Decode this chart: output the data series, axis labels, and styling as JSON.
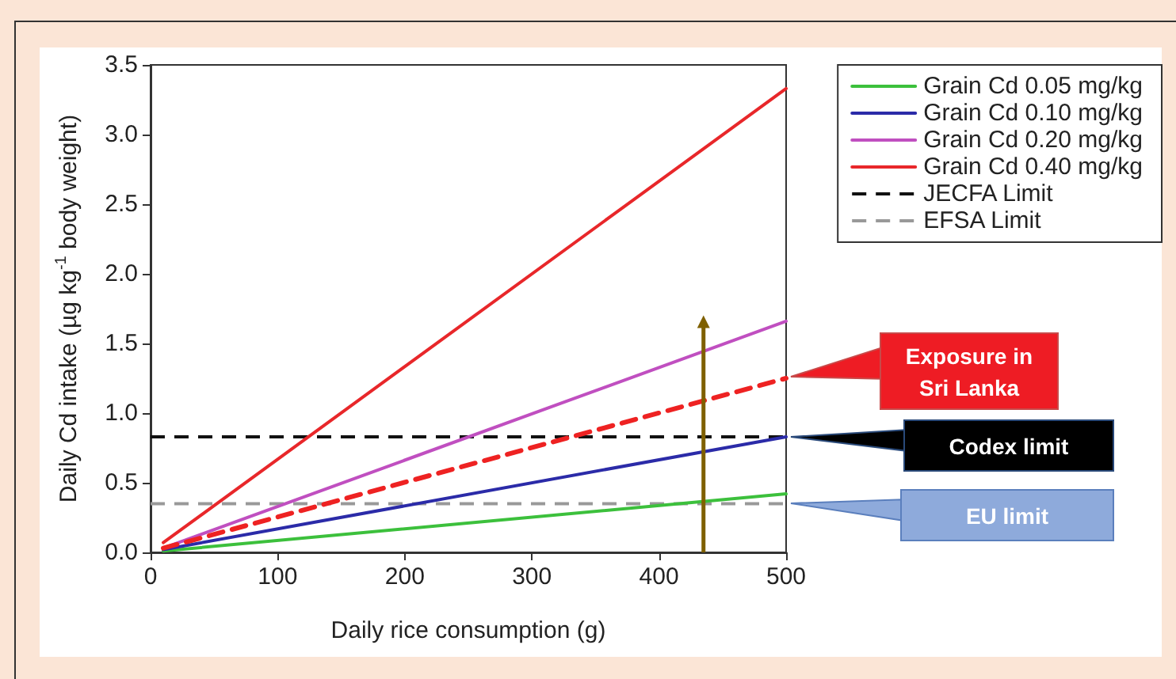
{
  "chart_data": {
    "type": "line",
    "xlabel": "Daily rice consumption (g)",
    "ylabel": "Daily Cd intake (µg kg$^{-1}$ body weight)",
    "x": [
      10,
      500
    ],
    "series": [
      {
        "name": "Grain Cd 0.05 mg/kg",
        "color": "#3cc03c",
        "values": [
          0.01,
          0.42
        ]
      },
      {
        "name": "Grain Cd 0.10 mg/kg",
        "color": "#2b2ba8",
        "values": [
          0.02,
          0.83
        ]
      },
      {
        "name": "Grain Cd 0.20 mg/kg",
        "color": "#c04fc0",
        "values": [
          0.03,
          1.66
        ]
      },
      {
        "name": "Grain Cd 0.40 mg/kg",
        "color": "#e8272a",
        "values": [
          0.07,
          3.33
        ]
      },
      {
        "color": "#ee2222",
        "values": [
          0.03,
          1.25
        ],
        "line_style": "dashed"
      }
    ],
    "ref_lines": [
      {
        "axis": "y",
        "value": 0.83,
        "label": "JECFA Limit",
        "color": "#111111",
        "line_style": "dashed"
      },
      {
        "axis": "y",
        "value": 0.35,
        "label": "EFSA Limit",
        "color": "#999999",
        "line_style": "dashed"
      }
    ],
    "annotations": [
      "Exposure in Sri Lanka",
      "Codex limit",
      "EU limit"
    ],
    "xlim": [
      0,
      500
    ],
    "xticks": [
      0,
      100,
      200,
      300,
      400,
      500
    ],
    "ylim": [
      0,
      3.5
    ],
    "yticks": [
      {
        "value": 0,
        "label": "0.0"
      },
      {
        "value": 0.5,
        "label": "0.5"
      },
      {
        "value": 1,
        "label": "1.0"
      },
      {
        "value": 1.5,
        "label": "1.5"
      },
      {
        "value": 2,
        "label": "2.0"
      },
      {
        "value": 2.5,
        "label": "2.5"
      },
      {
        "value": 3,
        "label": "3.0"
      },
      {
        "value": 3.5,
        "label": "3.5"
      }
    ],
    "grid": false,
    "legend": "top right",
    "marker": "none",
    "line_style": "solid"
  }
}
